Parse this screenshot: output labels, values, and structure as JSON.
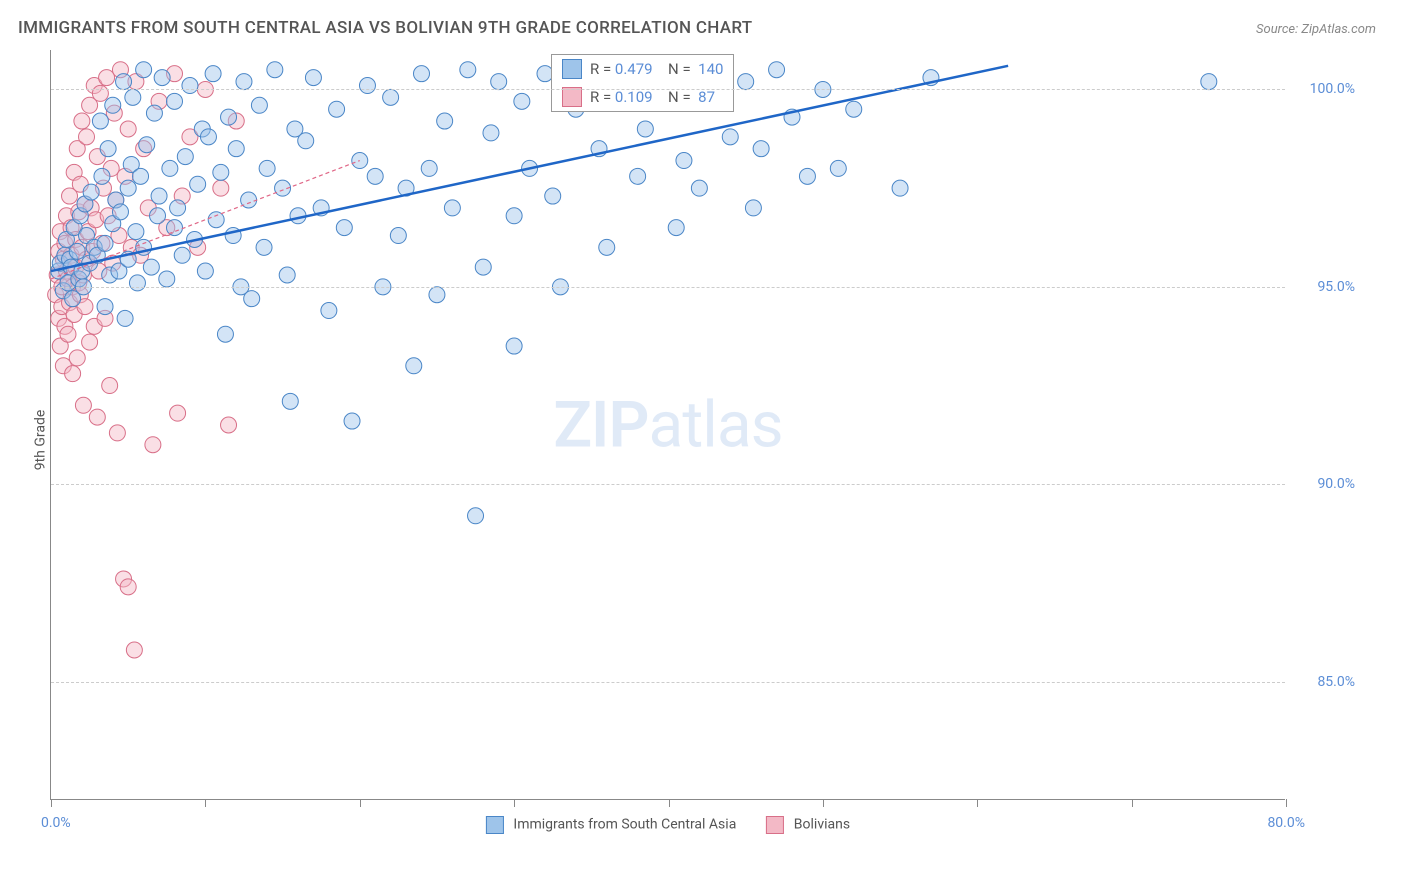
{
  "title": "IMMIGRANTS FROM SOUTH CENTRAL ASIA VS BOLIVIAN 9TH GRADE CORRELATION CHART",
  "source": "Source: ZipAtlas.com",
  "ylabel": "9th Grade",
  "watermark_a": "ZIP",
  "watermark_b": "atlas",
  "chart": {
    "type": "scatter",
    "background_color": "#ffffff",
    "grid_color": "#cccccc",
    "axis_color": "#888888",
    "xlim": [
      0,
      80
    ],
    "ylim": [
      82,
      101
    ],
    "xtick_positions": [
      0,
      10,
      20,
      30,
      40,
      50,
      60,
      70,
      80
    ],
    "xmin_label": "0.0%",
    "xmax_label": "80.0%",
    "yticks": [
      {
        "v": 100,
        "label": "100.0%"
      },
      {
        "v": 95,
        "label": "95.0%"
      },
      {
        "v": 90,
        "label": "90.0%"
      },
      {
        "v": 85,
        "label": "85.0%"
      }
    ],
    "marker_radius": 8,
    "marker_opacity": 0.45,
    "series": [
      {
        "name": "Immigrants from South Central Asia",
        "fill_color": "#9ec4ea",
        "stroke_color": "#4a86c7",
        "trend": {
          "x1": 0,
          "y1": 95.4,
          "x2": 62,
          "y2": 100.6,
          "stroke": "#1f66c7",
          "width": 2.5,
          "dash": "none"
        },
        "stats": {
          "R": "0.479",
          "N": "140"
        },
        "points": [
          [
            0.5,
            95.4
          ],
          [
            0.6,
            95.6
          ],
          [
            0.8,
            94.9
          ],
          [
            0.9,
            95.8
          ],
          [
            1.0,
            96.2
          ],
          [
            1.1,
            95.1
          ],
          [
            1.2,
            95.7
          ],
          [
            1.3,
            95.5
          ],
          [
            1.4,
            94.7
          ],
          [
            1.5,
            96.5
          ],
          [
            1.7,
            95.9
          ],
          [
            1.8,
            95.2
          ],
          [
            1.9,
            96.8
          ],
          [
            2.0,
            95.4
          ],
          [
            2.1,
            95.0
          ],
          [
            2.2,
            97.1
          ],
          [
            2.3,
            96.3
          ],
          [
            2.5,
            95.6
          ],
          [
            2.6,
            97.4
          ],
          [
            2.8,
            96.0
          ],
          [
            3.0,
            95.8
          ],
          [
            3.2,
            99.2
          ],
          [
            3.3,
            97.8
          ],
          [
            3.5,
            96.1
          ],
          [
            3.5,
            94.5
          ],
          [
            3.7,
            98.5
          ],
          [
            3.8,
            95.3
          ],
          [
            4.0,
            96.6
          ],
          [
            4.0,
            99.6
          ],
          [
            4.2,
            97.2
          ],
          [
            4.4,
            95.4
          ],
          [
            4.5,
            96.9
          ],
          [
            4.7,
            100.2
          ],
          [
            4.8,
            94.2
          ],
          [
            5.0,
            97.5
          ],
          [
            5.0,
            95.7
          ],
          [
            5.2,
            98.1
          ],
          [
            5.3,
            99.8
          ],
          [
            5.5,
            96.4
          ],
          [
            5.6,
            95.1
          ],
          [
            5.8,
            97.8
          ],
          [
            6.0,
            100.5
          ],
          [
            6.0,
            96.0
          ],
          [
            6.2,
            98.6
          ],
          [
            6.5,
            95.5
          ],
          [
            6.7,
            99.4
          ],
          [
            6.9,
            96.8
          ],
          [
            7.0,
            97.3
          ],
          [
            7.2,
            100.3
          ],
          [
            7.5,
            95.2
          ],
          [
            7.7,
            98.0
          ],
          [
            8.0,
            96.5
          ],
          [
            8.0,
            99.7
          ],
          [
            8.2,
            97.0
          ],
          [
            8.5,
            95.8
          ],
          [
            8.7,
            98.3
          ],
          [
            9.0,
            100.1
          ],
          [
            9.3,
            96.2
          ],
          [
            9.5,
            97.6
          ],
          [
            9.8,
            99.0
          ],
          [
            10.0,
            95.4
          ],
          [
            10.2,
            98.8
          ],
          [
            10.5,
            100.4
          ],
          [
            10.7,
            96.7
          ],
          [
            11.0,
            97.9
          ],
          [
            11.3,
            93.8
          ],
          [
            11.5,
            99.3
          ],
          [
            11.8,
            96.3
          ],
          [
            12.0,
            98.5
          ],
          [
            12.3,
            95.0
          ],
          [
            12.5,
            100.2
          ],
          [
            12.8,
            97.2
          ],
          [
            13.0,
            94.7
          ],
          [
            13.5,
            99.6
          ],
          [
            13.8,
            96.0
          ],
          [
            14.0,
            98.0
          ],
          [
            14.5,
            100.5
          ],
          [
            15.0,
            97.5
          ],
          [
            15.3,
            95.3
          ],
          [
            15.5,
            92.1
          ],
          [
            15.8,
            99.0
          ],
          [
            16.0,
            96.8
          ],
          [
            16.5,
            98.7
          ],
          [
            17.0,
            100.3
          ],
          [
            17.5,
            97.0
          ],
          [
            18.0,
            94.4
          ],
          [
            18.5,
            99.5
          ],
          [
            19.0,
            96.5
          ],
          [
            19.5,
            91.6
          ],
          [
            20.0,
            98.2
          ],
          [
            20.5,
            100.1
          ],
          [
            21.0,
            97.8
          ],
          [
            21.5,
            95.0
          ],
          [
            22.0,
            99.8
          ],
          [
            22.5,
            96.3
          ],
          [
            23.0,
            97.5
          ],
          [
            23.5,
            93.0
          ],
          [
            24.0,
            100.4
          ],
          [
            24.5,
            98.0
          ],
          [
            25.0,
            94.8
          ],
          [
            25.5,
            99.2
          ],
          [
            26.0,
            97.0
          ],
          [
            27.0,
            100.5
          ],
          [
            27.5,
            89.2
          ],
          [
            28.0,
            95.5
          ],
          [
            28.5,
            98.9
          ],
          [
            29.0,
            100.2
          ],
          [
            30.0,
            96.8
          ],
          [
            30.0,
            93.5
          ],
          [
            30.5,
            99.7
          ],
          [
            31.0,
            98.0
          ],
          [
            32.0,
            100.4
          ],
          [
            32.5,
            97.3
          ],
          [
            33.0,
            95.0
          ],
          [
            34.0,
            99.5
          ],
          [
            35.0,
            100.1
          ],
          [
            35.5,
            98.5
          ],
          [
            36.0,
            96.0
          ],
          [
            37.0,
            100.5
          ],
          [
            38.0,
            97.8
          ],
          [
            38.5,
            99.0
          ],
          [
            40.0,
            100.3
          ],
          [
            40.5,
            96.5
          ],
          [
            41.0,
            98.2
          ],
          [
            42.0,
            97.5
          ],
          [
            42.5,
            100.4
          ],
          [
            43.0,
            99.8
          ],
          [
            44.0,
            98.8
          ],
          [
            45.0,
            100.2
          ],
          [
            45.5,
            97.0
          ],
          [
            46.0,
            98.5
          ],
          [
            47.0,
            100.5
          ],
          [
            48.0,
            99.3
          ],
          [
            49.0,
            97.8
          ],
          [
            50.0,
            100.0
          ],
          [
            51.0,
            98.0
          ],
          [
            52.0,
            99.5
          ],
          [
            55.0,
            97.5
          ],
          [
            57.0,
            100.3
          ],
          [
            75.0,
            100.2
          ]
        ]
      },
      {
        "name": "Bolivians",
        "fill_color": "#f3b9c6",
        "stroke_color": "#d86f88",
        "trend": {
          "x1": 0,
          "y1": 95.2,
          "x2": 20,
          "y2": 98.2,
          "stroke": "#e06787",
          "width": 1.2,
          "dash": "4,3"
        },
        "stats": {
          "R": "0.109",
          "N": "87"
        },
        "points": [
          [
            0.3,
            94.8
          ],
          [
            0.4,
            95.3
          ],
          [
            0.5,
            94.2
          ],
          [
            0.5,
            95.9
          ],
          [
            0.6,
            93.5
          ],
          [
            0.6,
            96.4
          ],
          [
            0.7,
            95.0
          ],
          [
            0.7,
            94.5
          ],
          [
            0.8,
            95.7
          ],
          [
            0.8,
            93.0
          ],
          [
            0.9,
            96.1
          ],
          [
            0.9,
            94.0
          ],
          [
            1.0,
            95.4
          ],
          [
            1.0,
            96.8
          ],
          [
            1.1,
            93.8
          ],
          [
            1.1,
            95.2
          ],
          [
            1.2,
            97.3
          ],
          [
            1.2,
            94.6
          ],
          [
            1.3,
            95.8
          ],
          [
            1.3,
            96.5
          ],
          [
            1.4,
            92.8
          ],
          [
            1.4,
            95.0
          ],
          [
            1.5,
            97.9
          ],
          [
            1.5,
            94.3
          ],
          [
            1.6,
            96.2
          ],
          [
            1.6,
            95.5
          ],
          [
            1.7,
            98.5
          ],
          [
            1.7,
            93.2
          ],
          [
            1.8,
            96.9
          ],
          [
            1.8,
            95.1
          ],
          [
            1.9,
            97.6
          ],
          [
            1.9,
            94.8
          ],
          [
            2.0,
            96.0
          ],
          [
            2.0,
            99.2
          ],
          [
            2.1,
            95.3
          ],
          [
            2.1,
            92.0
          ],
          [
            2.2,
            97.1
          ],
          [
            2.2,
            94.5
          ],
          [
            2.3,
            98.8
          ],
          [
            2.3,
            95.7
          ],
          [
            2.4,
            96.4
          ],
          [
            2.5,
            99.6
          ],
          [
            2.5,
            93.6
          ],
          [
            2.6,
            97.0
          ],
          [
            2.7,
            95.9
          ],
          [
            2.8,
            100.1
          ],
          [
            2.8,
            94.0
          ],
          [
            2.9,
            96.7
          ],
          [
            3.0,
            98.3
          ],
          [
            3.0,
            91.7
          ],
          [
            3.1,
            95.4
          ],
          [
            3.2,
            99.9
          ],
          [
            3.3,
            96.1
          ],
          [
            3.4,
            97.5
          ],
          [
            3.5,
            94.2
          ],
          [
            3.6,
            100.3
          ],
          [
            3.7,
            96.8
          ],
          [
            3.8,
            92.5
          ],
          [
            3.9,
            98.0
          ],
          [
            4.0,
            95.6
          ],
          [
            4.1,
            99.4
          ],
          [
            4.2,
            97.2
          ],
          [
            4.3,
            91.3
          ],
          [
            4.4,
            96.3
          ],
          [
            4.5,
            100.5
          ],
          [
            4.7,
            87.6
          ],
          [
            4.8,
            97.8
          ],
          [
            5.0,
            99.0
          ],
          [
            5.0,
            87.4
          ],
          [
            5.2,
            96.0
          ],
          [
            5.4,
            85.8
          ],
          [
            5.5,
            100.2
          ],
          [
            5.8,
            95.8
          ],
          [
            6.0,
            98.5
          ],
          [
            6.3,
            97.0
          ],
          [
            6.6,
            91.0
          ],
          [
            7.0,
            99.7
          ],
          [
            7.5,
            96.5
          ],
          [
            8.0,
            100.4
          ],
          [
            8.2,
            91.8
          ],
          [
            8.5,
            97.3
          ],
          [
            9.0,
            98.8
          ],
          [
            9.5,
            96.0
          ],
          [
            10.0,
            100.0
          ],
          [
            11.0,
            97.5
          ],
          [
            11.5,
            91.5
          ],
          [
            12.0,
            99.2
          ]
        ]
      }
    ]
  },
  "legend": {
    "series1_label": "Immigrants from South Central Asia",
    "series2_label": "Bolivians"
  }
}
